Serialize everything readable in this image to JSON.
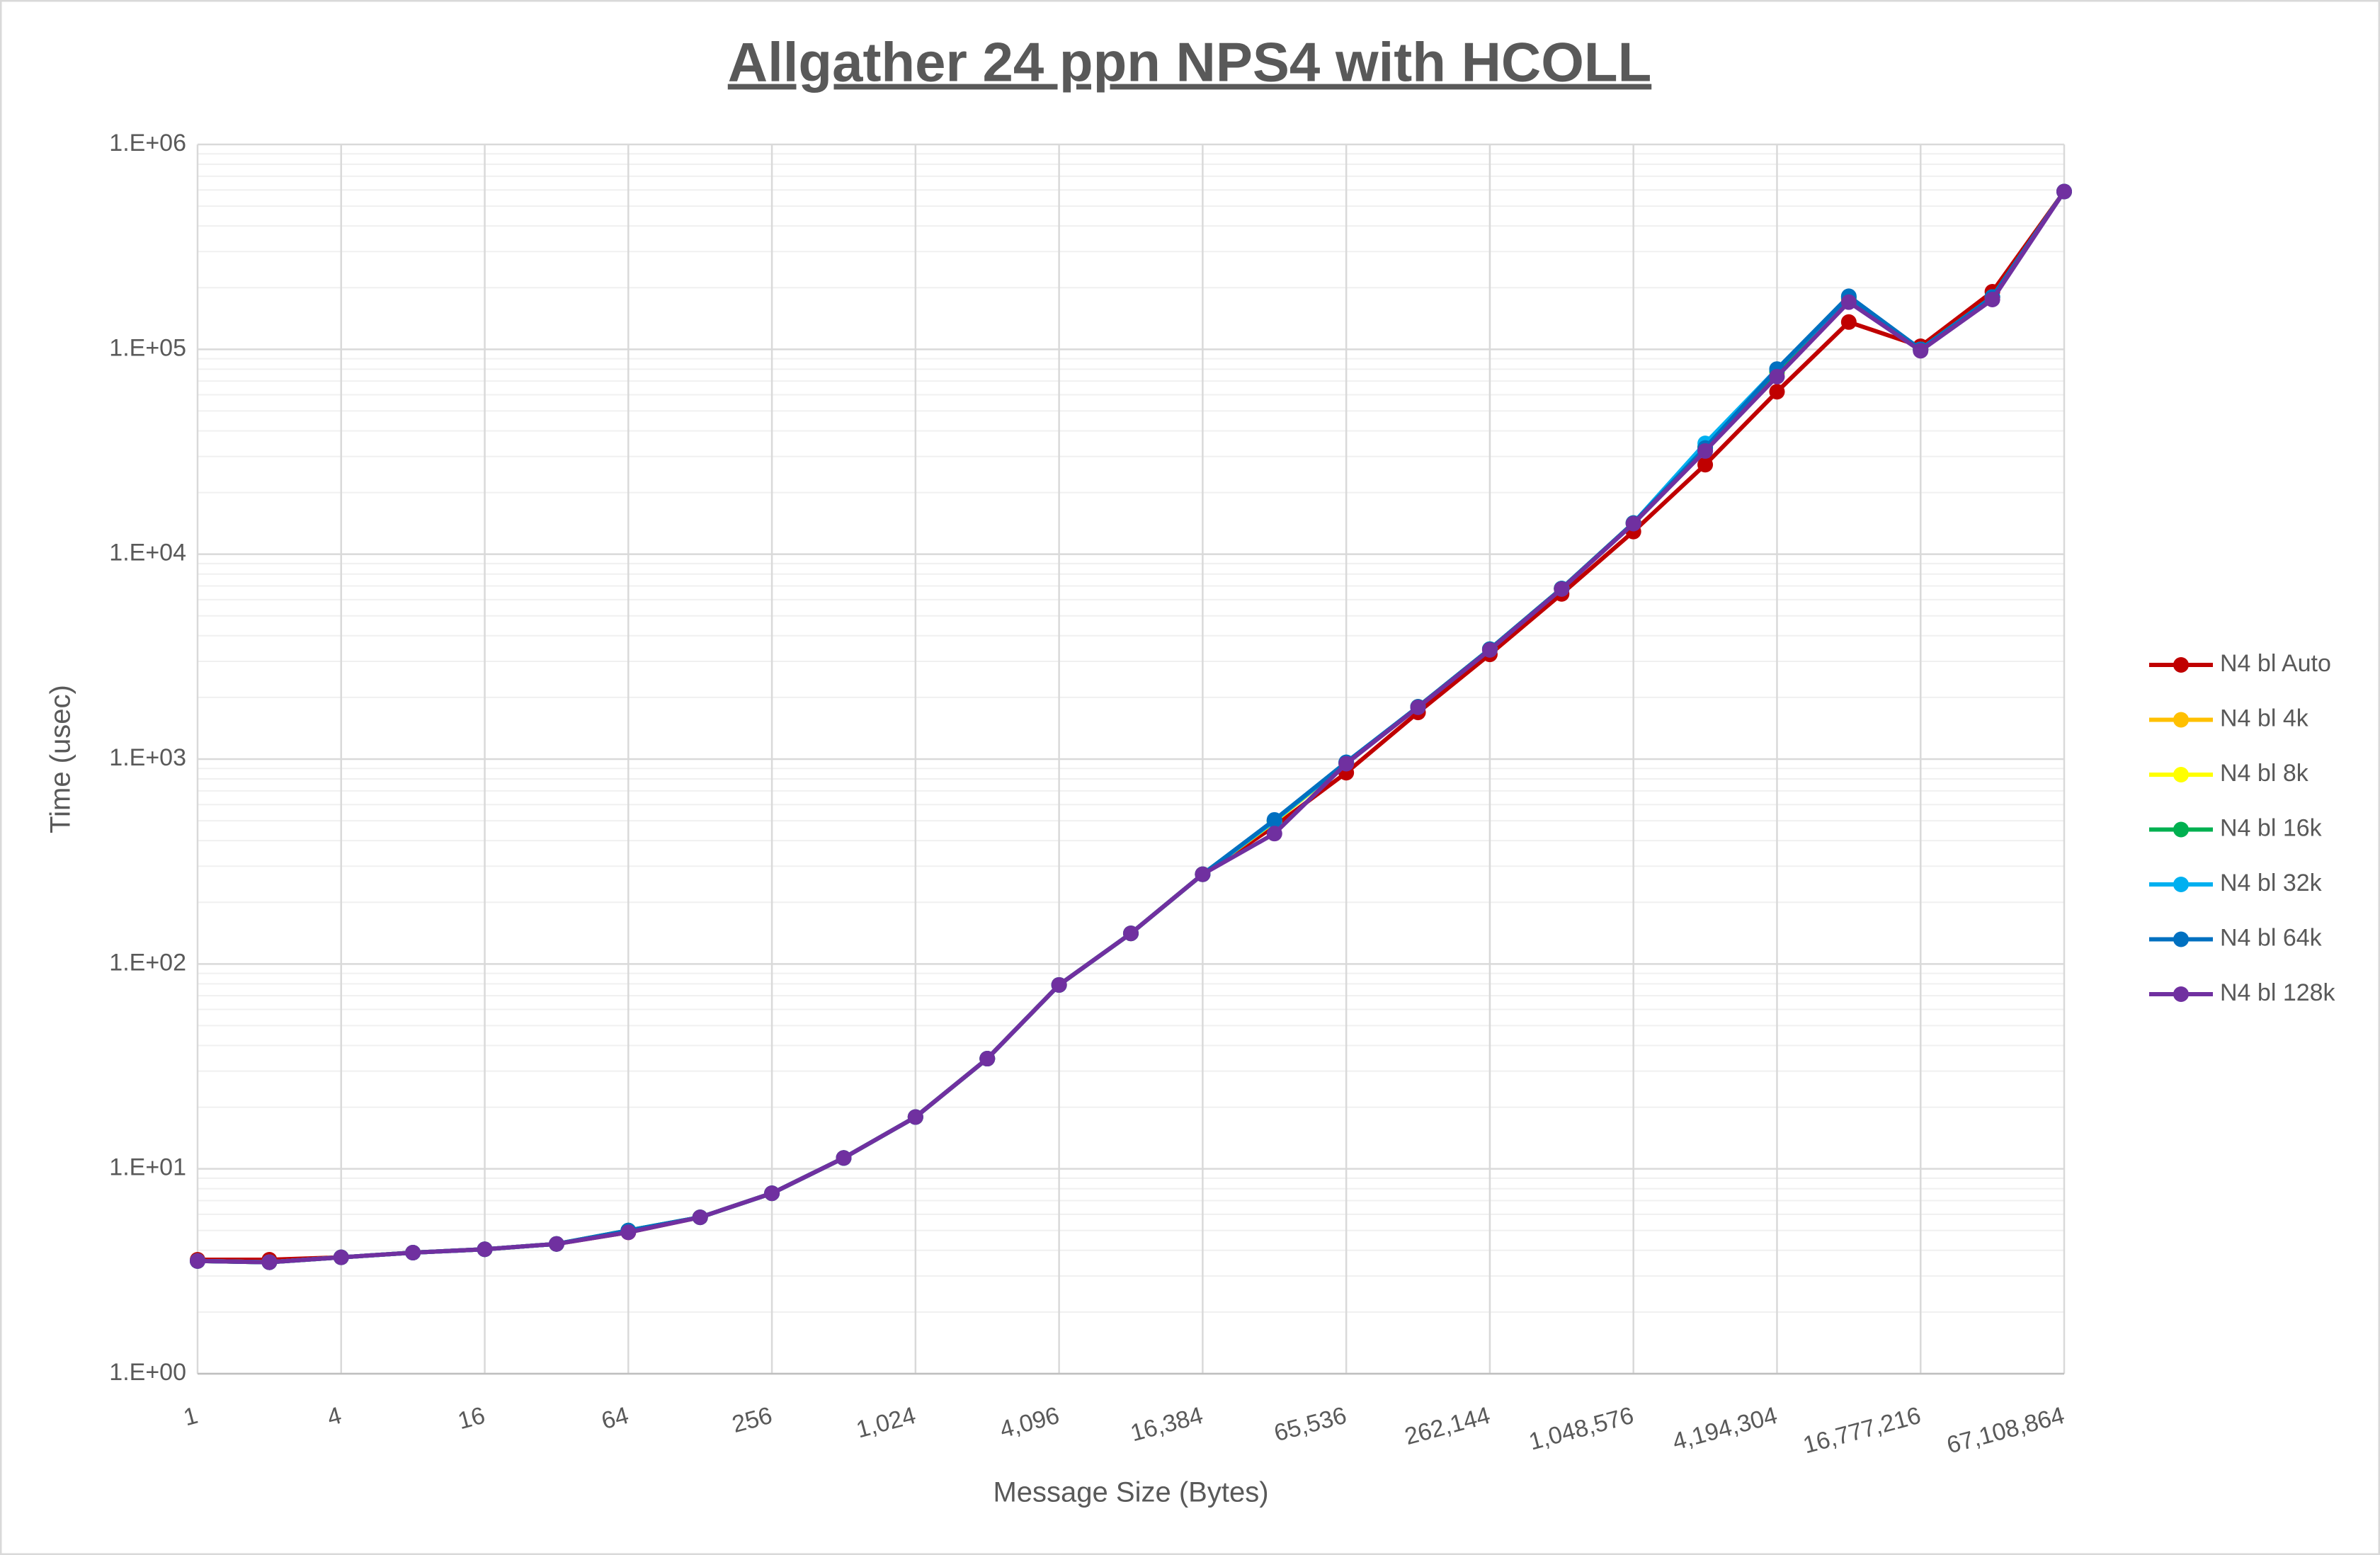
{
  "chart_data": {
    "type": "line",
    "title": "Allgather 24 ppn NPS4 with HCOLL",
    "x_label": "Message Size (Bytes)",
    "y_label": "Time (usec)",
    "x": [
      1,
      2,
      4,
      8,
      16,
      32,
      64,
      128,
      256,
      512,
      1024,
      2048,
      4096,
      8192,
      16384,
      32768,
      65536,
      131072,
      262144,
      524288,
      1048576,
      2097152,
      4194304,
      8388608,
      16777216,
      33554432,
      67108864
    ],
    "x_log_base": 2,
    "y_log_base": 10,
    "xlim": [
      1,
      67108864
    ],
    "xticks": [
      1,
      4,
      16,
      64,
      256,
      {
        "value": 1024,
        "label": "1,024"
      },
      {
        "value": 4096,
        "label": "4,096"
      },
      {
        "value": 16384,
        "label": "16,384"
      },
      {
        "value": 65536,
        "label": "65,536"
      },
      {
        "value": 262144,
        "label": "262,144"
      },
      {
        "value": 1048576,
        "label": "1,048,576"
      },
      {
        "value": 4194304,
        "label": "4,194,304"
      },
      {
        "value": 16777216,
        "label": "16,777,216"
      },
      {
        "value": 67108864,
        "label": "67,108,864"
      }
    ],
    "ylim": [
      1,
      1000000
    ],
    "yticks": [
      {
        "value": 1,
        "label": "1.E+00"
      },
      {
        "value": 10,
        "label": "1.E+01"
      },
      {
        "value": 100,
        "label": "1.E+02"
      },
      {
        "value": 1000,
        "label": "1.E+03"
      },
      {
        "value": 10000,
        "label": "1.E+04"
      },
      {
        "value": 100000,
        "label": "1.E+05"
      },
      {
        "value": 1000000,
        "label": "1.E+06"
      }
    ],
    "grid": true,
    "minor_grid": true,
    "legend": "right",
    "series": [
      {
        "name": "N4 bl Auto",
        "color": "#c00000",
        "values": [
          3.6,
          3.6,
          3.7,
          3.9,
          4.05,
          4.3,
          4.9,
          5.8,
          7.6,
          11.3,
          17.9,
          34.5,
          79,
          141,
          274,
          470,
          858,
          1690,
          3245,
          6400,
          12900,
          27350,
          62100,
          135900,
          103500,
          191000,
          589000
        ]
      },
      {
        "name": "N4 bl 4k",
        "color": "#ffc000",
        "values": [
          3.55,
          3.5,
          3.7,
          3.9,
          4.05,
          4.3,
          5.0,
          5.8,
          7.6,
          11.3,
          17.9,
          34.5,
          79,
          141,
          274,
          495,
          955,
          1800,
          3440,
          6800,
          14200,
          33000,
          77000,
          176000,
          100000,
          180000,
          589000
        ]
      },
      {
        "name": "N4 bl 8k",
        "color": "#ffff00",
        "values": [
          3.55,
          3.5,
          3.7,
          3.9,
          4.05,
          4.3,
          5.0,
          5.8,
          7.6,
          11.3,
          17.9,
          34.5,
          79,
          141,
          274,
          495,
          955,
          1800,
          3440,
          6800,
          14200,
          33000,
          77000,
          176000,
          100000,
          180000,
          589000
        ]
      },
      {
        "name": "N4 bl 16k",
        "color": "#00b050",
        "values": [
          3.55,
          3.5,
          3.7,
          3.9,
          4.05,
          4.3,
          5.0,
          5.8,
          7.6,
          11.3,
          17.9,
          34.5,
          79,
          141,
          274,
          500,
          960,
          1800,
          3440,
          6800,
          14200,
          33500,
          78000,
          178000,
          100000,
          180000,
          589000
        ]
      },
      {
        "name": "N4 bl 32k",
        "color": "#00b0f0",
        "values": [
          3.55,
          3.5,
          3.7,
          3.9,
          4.05,
          4.3,
          5.0,
          5.8,
          7.6,
          11.3,
          17.9,
          34.5,
          79,
          141,
          274,
          500,
          960,
          1800,
          3440,
          6800,
          14200,
          34750,
          80000,
          180000,
          100000,
          180000,
          589000
        ]
      },
      {
        "name": "N4 bl 64k",
        "color": "#0070c0",
        "values": [
          3.55,
          3.5,
          3.7,
          3.9,
          4.05,
          4.3,
          5.0,
          5.8,
          7.6,
          11.3,
          17.9,
          34.5,
          79,
          141,
          274,
          505,
          965,
          1800,
          3440,
          6800,
          14200,
          33000,
          80100,
          181600,
          100000,
          180000,
          589000
        ]
      },
      {
        "name": "N4 bl 128k",
        "color": "#7030a0",
        "values": [
          3.55,
          3.5,
          3.7,
          3.9,
          4.05,
          4.3,
          4.9,
          5.8,
          7.6,
          11.3,
          17.9,
          34.5,
          79,
          141,
          274,
          433,
          950,
          1790,
          3410,
          6760,
          14100,
          31900,
          73600,
          170000,
          98400,
          175000,
          589000
        ]
      }
    ]
  }
}
